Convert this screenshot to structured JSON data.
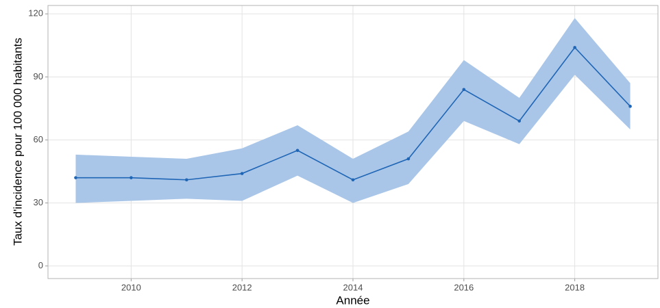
{
  "chart_data": {
    "type": "line",
    "x_label": "Année",
    "y_label": "Taux d'incidence pour 100 000 habitants",
    "x": [
      2009,
      2010,
      2011,
      2012,
      2013,
      2014,
      2015,
      2016,
      2017,
      2018,
      2019
    ],
    "values": [
      42,
      42,
      41,
      44,
      55,
      41,
      51,
      84,
      69,
      104,
      76
    ],
    "lower": [
      30,
      31,
      32,
      31,
      43,
      30,
      39,
      69,
      58,
      91,
      65
    ],
    "upper": [
      53,
      52,
      51,
      56,
      67,
      51,
      64,
      98,
      80,
      118,
      87
    ],
    "color": "#1f65b5",
    "band_color": "#a9c6e8",
    "xlim": [
      2008.5,
      2019.5
    ],
    "xticks": [
      2010,
      2012,
      2014,
      2016,
      2018
    ],
    "ylim": [
      -6,
      124
    ],
    "yticks": [
      0,
      30,
      60,
      90,
      120
    ],
    "grid": true
  }
}
